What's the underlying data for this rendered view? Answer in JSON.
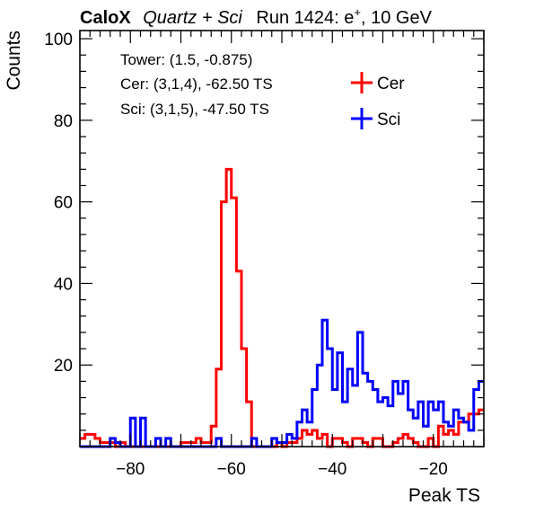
{
  "header": {
    "brand": "CaloX",
    "subtitle": "Quartz + Sci",
    "run_prefix": "Run 1424: e",
    "run_sup": "+",
    "run_suffix": ", 10 GeV"
  },
  "info_lines": [
    "Tower: (1.5, -0.875)",
    "Cer: (3,1,4), -62.50 TS",
    "Sci: (3,1,5), -47.50 TS"
  ],
  "chart_data": {
    "type": "line",
    "drawstyle": "step",
    "xlabel": "Peak TS",
    "ylabel": "Counts",
    "xlim": [
      -90,
      -10
    ],
    "ylim": [
      0,
      102
    ],
    "xticks": [
      -80,
      -60,
      -40,
      -20
    ],
    "yticks": [
      20,
      40,
      60,
      80,
      100
    ],
    "bin_width": 1,
    "bin_edges_start": -90,
    "legend_position": "top-right",
    "series": [
      {
        "name": "Cer",
        "color": "#ff0000",
        "values": [
          2,
          3,
          3,
          2,
          1,
          1,
          1,
          0,
          1,
          0,
          0,
          0,
          0,
          0,
          0,
          0,
          0,
          0,
          0,
          0,
          1,
          1,
          1,
          2,
          1,
          1,
          5,
          19,
          60,
          68,
          61,
          43,
          24,
          11,
          0,
          0,
          0,
          0,
          0,
          1,
          0,
          1,
          1,
          2,
          4,
          3,
          4,
          2,
          3,
          0,
          2,
          2,
          1,
          0,
          2,
          2,
          1,
          0,
          2,
          2,
          0,
          0,
          1,
          2,
          3,
          2,
          1,
          0,
          0,
          2,
          0,
          5,
          3,
          4,
          3,
          6,
          6,
          8,
          8,
          9
        ]
      },
      {
        "name": "Sci",
        "color": "#0000ff",
        "values": [
          0,
          0,
          0,
          0,
          0,
          0,
          2,
          1,
          0,
          0,
          7,
          0,
          7,
          0,
          0,
          2,
          0,
          2,
          0,
          0,
          0,
          0,
          0,
          0,
          0,
          0,
          0,
          2,
          0,
          0,
          0,
          0,
          0,
          0,
          2,
          0,
          0,
          0,
          2,
          1,
          1,
          3,
          2,
          6,
          9,
          6,
          14,
          20,
          31,
          24,
          14,
          23,
          11,
          19,
          15,
          28,
          18,
          16,
          14,
          11,
          12,
          10,
          16,
          13,
          16,
          9,
          7,
          11,
          5,
          11,
          9,
          11,
          6,
          5,
          9,
          7,
          6,
          4,
          14,
          16
        ]
      }
    ]
  }
}
